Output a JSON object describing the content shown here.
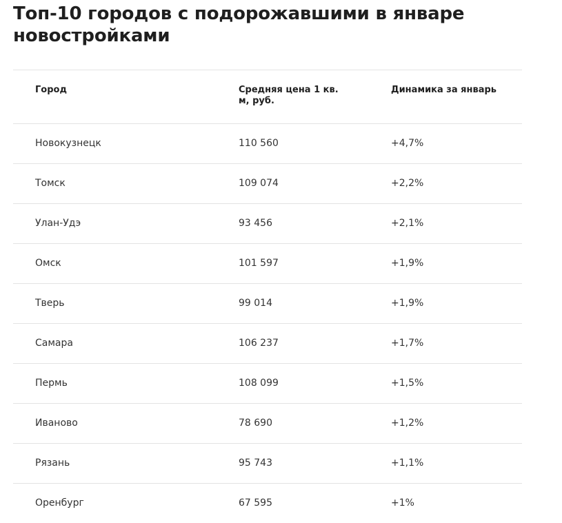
{
  "title": "Топ-10 городов с подорожавшими в январе новостройками",
  "table": {
    "headers": {
      "city": "Город",
      "price": "Средняя цена 1 кв. м, руб.",
      "change": "Динамика за январь"
    },
    "rows": [
      {
        "city": "Новокузнецк",
        "price": "110 560",
        "change": "+4,7%"
      },
      {
        "city": "Томск",
        "price": "109 074",
        "change": "+2,2%"
      },
      {
        "city": "Улан-Удэ",
        "price": "93 456",
        "change": "+2,1%"
      },
      {
        "city": "Омск",
        "price": "101 597",
        "change": "+1,9%"
      },
      {
        "city": "Тверь",
        "price": "99 014",
        "change": "+1,9%"
      },
      {
        "city": "Самара",
        "price": "106 237",
        "change": "+1,7%"
      },
      {
        "city": "Пермь",
        "price": "108 099",
        "change": "+1,5%"
      },
      {
        "city": "Иваново",
        "price": "78 690",
        "change": "+1,2%"
      },
      {
        "city": "Рязань",
        "price": "95 743",
        "change": "+1,1%"
      },
      {
        "city": "Оренбург",
        "price": "67 595",
        "change": "+1%"
      }
    ]
  }
}
